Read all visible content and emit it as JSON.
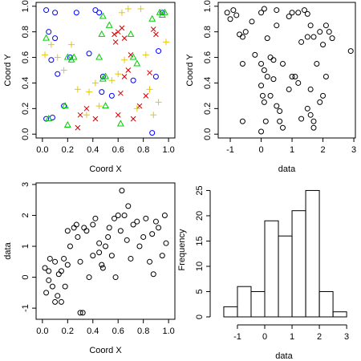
{
  "chart_data": [
    {
      "type": "scatter",
      "xlabel": "Coord X",
      "ylabel": "Coord Y",
      "xlim": [
        -0.05,
        1.05
      ],
      "ylim": [
        -0.03,
        1.03
      ],
      "xticks": [
        {
          "value": 0,
          "label": "0.0"
        },
        0.2,
        0.4,
        0.6,
        0.8,
        {
          "value": 1,
          "label": "1.0"
        }
      ],
      "yticks": [
        {
          "value": 0,
          "label": "0.0"
        },
        0.2,
        0.4,
        0.6,
        0.8,
        {
          "value": 1,
          "label": "1.0"
        }
      ],
      "series": [
        {
          "color": "#0000ff",
          "marker": "circle",
          "x": [
            0.03,
            0.1,
            0.05,
            0.1,
            0.07,
            0.12,
            0.03,
            0.08,
            0.17,
            0.27,
            0.22,
            0.37,
            0.42,
            0.45,
            0.48,
            0.47,
            0.87,
            0.9,
            0.95,
            0.92,
            0.55,
            0.72
          ],
          "y": [
            0.97,
            0.95,
            0.8,
            0.75,
            0.58,
            0.47,
            0.12,
            0.13,
            0.22,
            0.95,
            0.6,
            0.63,
            0.97,
            0.95,
            0.45,
            0.33,
            0.01,
            0.45,
            0.95,
            0.65,
            0.3,
            0.42
          ]
        },
        {
          "color": "#cc0000",
          "marker": "cross",
          "x": [
            0.57,
            0.6,
            0.63,
            0.65,
            0.58,
            0.68,
            0.7,
            0.65,
            0.62,
            0.6,
            0.72,
            0.77,
            0.82,
            0.88,
            0.9,
            0.85,
            0.42,
            0.3,
            0.28,
            0.35
          ],
          "y": [
            0.78,
            0.8,
            0.83,
            0.75,
            0.72,
            0.5,
            0.62,
            0.45,
            0.32,
            0.15,
            0.12,
            0.22,
            0.3,
            0.82,
            0.78,
            0.48,
            0.12,
            0.15,
            0.05,
            0.2
          ]
        },
        {
          "color": "#00cc00",
          "marker": "triangle",
          "x": [
            0.03,
            0.05,
            0.2,
            0.23,
            0.25,
            0.18,
            0.2,
            0.48,
            0.47,
            0.45,
            0.5,
            0.48,
            0.53,
            0.7,
            0.72,
            0.75,
            0.87,
            0.95,
            0.97,
            0.93,
            0.62,
            0.5
          ],
          "y": [
            0.75,
            0.12,
            0.6,
            0.58,
            0.6,
            0.22,
            0.07,
            0.92,
            0.78,
            0.6,
            0.45,
            0.43,
            0.85,
            0.78,
            0.6,
            0.55,
            0.9,
            0.93,
            0.95,
            0.95,
            0.08,
            0.22
          ]
        },
        {
          "color": "#e8c800",
          "marker": "plus",
          "x": [
            0.02,
            0.07,
            0.12,
            0.17,
            0.23,
            0.28,
            0.37,
            0.35,
            0.45,
            0.55,
            0.6,
            0.65,
            0.63,
            0.68,
            0.78,
            0.82,
            0.85,
            0.88,
            0.92,
            0.98,
            0.75,
            0.42
          ],
          "y": [
            0.62,
            0.7,
            0.6,
            0.5,
            0.7,
            0.35,
            0.33,
            0.15,
            0.22,
            0.42,
            0.47,
            0.58,
            0.95,
            0.98,
            0.98,
            0.62,
            0.35,
            0.15,
            0.25,
            0.72,
            0.2,
            0.4
          ]
        }
      ]
    },
    {
      "type": "scatter",
      "xlabel": "data",
      "ylabel": "Coord Y",
      "xlim": [
        -1.39,
        3.05
      ],
      "ylim": [
        -0.03,
        1.03
      ],
      "xticks": [
        -1,
        0,
        1,
        2,
        3
      ],
      "yticks": [
        {
          "value": 0,
          "label": "0.0"
        },
        0.2,
        0.4,
        0.6,
        0.8,
        {
          "value": 1,
          "label": "1.0"
        }
      ],
      "series": [
        {
          "color": "#000000",
          "marker": "circle",
          "x": [
            -1.1,
            -1.0,
            -0.9,
            -0.8,
            -0.7,
            -0.6,
            -0.5,
            -0.6,
            -0.3,
            -0.2,
            0,
            0.1,
            0.2,
            0.3,
            0.4,
            0.5,
            0.5,
            0.7,
            0.9,
            1.0,
            1.2,
            1.4,
            1.5,
            1.6,
            1.3,
            1.5,
            1.7,
            1.9,
            2.0,
            2.1,
            2.2,
            2.3,
            2.9,
            0,
            0.1,
            0.2,
            0,
            0.05,
            0.1,
            0.15,
            0.0,
            0.3,
            0.5,
            0.6,
            0.6,
            0.7,
            0.9,
            1.0,
            1.1,
            1.2,
            1.3,
            1.5,
            1.6,
            1.7,
            1.7,
            1.9,
            2.0,
            2.1,
            1.8,
            1.6,
            0.4,
            -0.6
          ],
          "y": [
            0.95,
            0.9,
            0.97,
            0.93,
            0.78,
            0.76,
            0.8,
            0.55,
            0.88,
            0.62,
            0.95,
            0.98,
            0.75,
            0.6,
            0.58,
            0.97,
            0.85,
            0.55,
            0.92,
            0.95,
            0.95,
            0.97,
            0.94,
            0.85,
            0.72,
            0.76,
            0.76,
            0.8,
            0.7,
            0.85,
            0.8,
            0.75,
            0.65,
            0.55,
            0.5,
            0.45,
            0.38,
            0.3,
            0.25,
            0.1,
            0.02,
            0.3,
            0.22,
            0.18,
            0.1,
            0.05,
            0.35,
            0.45,
            0.45,
            0.4,
            0.12,
            0.2,
            0.15,
            0.05,
            0.1,
            0.25,
            0.3,
            0.45,
            0.55,
            0.35,
            0.43,
            0.1
          ]
        }
      ]
    },
    {
      "type": "scatter",
      "xlabel": "Coord X",
      "ylabel": "data",
      "xlim": [
        -0.05,
        1.05
      ],
      "ylim": [
        -1.36,
        3.05
      ],
      "xticks": [
        {
          "value": 0,
          "label": "0.0"
        },
        0.2,
        0.4,
        0.6,
        0.8,
        {
          "value": 1,
          "label": "1.0"
        }
      ],
      "yticks": [
        -1,
        0,
        1,
        2,
        3
      ],
      "series": [
        {
          "color": "#000000",
          "marker": "circle",
          "x": [
            0.02,
            0.03,
            0.05,
            0.06,
            0.08,
            0.1,
            0.1,
            0.12,
            0.13,
            0.15,
            0.17,
            0.18,
            0.2,
            0.2,
            0.22,
            0.25,
            0.27,
            0.28,
            0.3,
            0.32,
            0.3,
            0.35,
            0.37,
            0.4,
            0.4,
            0.42,
            0.45,
            0.47,
            0.48,
            0.5,
            0.52,
            0.53,
            0.55,
            0.57,
            0.6,
            0.62,
            0.63,
            0.65,
            0.67,
            0.7,
            0.72,
            0.75,
            0.77,
            0.8,
            0.82,
            0.85,
            0.87,
            0.9,
            0.92,
            0.95,
            0.97,
            0.98,
            0.05,
            0.15,
            0.33,
            0.58,
            0.68,
            0.88,
            0.45
          ],
          "y": [
            0.3,
            -0.5,
            0.2,
            0.6,
            -0.3,
            0.5,
            -0.8,
            -0.6,
            0.1,
            0.2,
            0.6,
            -0.3,
            0.4,
            1.5,
            1.0,
            1.6,
            1.7,
            1.3,
            0.5,
            -1.15,
            -1.15,
            1.5,
            0,
            0.7,
            1.7,
            1.9,
            0.8,
            0.4,
            0.3,
            1.0,
            1.3,
            1.6,
            0.7,
            1.9,
            2.0,
            1.5,
            2.8,
            2.0,
            1.2,
            0.6,
            1.7,
            1.8,
            1.0,
            1.3,
            1.9,
            0.5,
            1.4,
            1.8,
            1.6,
            0.7,
            2.0,
            1.1,
            -0.1,
            -0.8,
            1.6,
            0.0,
            2.3,
            0.1,
            1.1
          ]
        }
      ]
    },
    {
      "type": "histogram",
      "xlabel": "data",
      "ylabel": "Frequency",
      "xlim": [
        -1.91,
        3.32
      ],
      "ylim": [
        0,
        26.5
      ],
      "xticks": [
        -1,
        0,
        1,
        2,
        3
      ],
      "yticks": [
        0,
        5,
        10,
        15,
        20,
        25
      ],
      "bins": [
        -1.5,
        -1,
        -0.5,
        0,
        0.5,
        1,
        1.5,
        2,
        2.5,
        3
      ],
      "values": [
        2,
        6,
        5,
        19,
        16,
        21,
        25,
        5,
        1
      ]
    }
  ]
}
